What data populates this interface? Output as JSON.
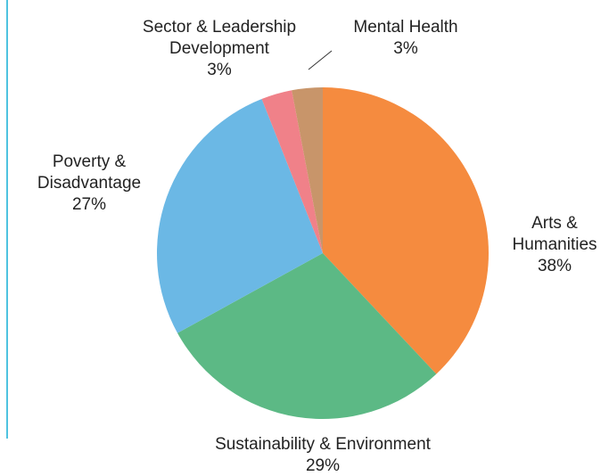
{
  "chart_data": {
    "type": "pie",
    "title": "",
    "slices": [
      {
        "label_lines": [
          "Arts &",
          "Humanities"
        ],
        "value": 38,
        "pct_text": "38%",
        "color": "#f58b3f"
      },
      {
        "label_lines": [
          "Sustainability & Environment"
        ],
        "value": 29,
        "pct_text": "29%",
        "color": "#5cb985"
      },
      {
        "label_lines": [
          "Poverty &",
          "Disadvantage"
        ],
        "value": 27,
        "pct_text": "27%",
        "color": "#6bb8e5"
      },
      {
        "label_lines": [
          "Sector & Leadership",
          "Development"
        ],
        "value": 3,
        "pct_text": "3%",
        "color": "#f08189"
      },
      {
        "label_lines": [
          "Mental Health"
        ],
        "value": 3,
        "pct_text": "3%",
        "color": "#c8956a"
      }
    ],
    "start_angle": "12 o'clock",
    "direction": "clockwise",
    "legend": "none",
    "accent_rule_color": "#4fc3e0"
  }
}
